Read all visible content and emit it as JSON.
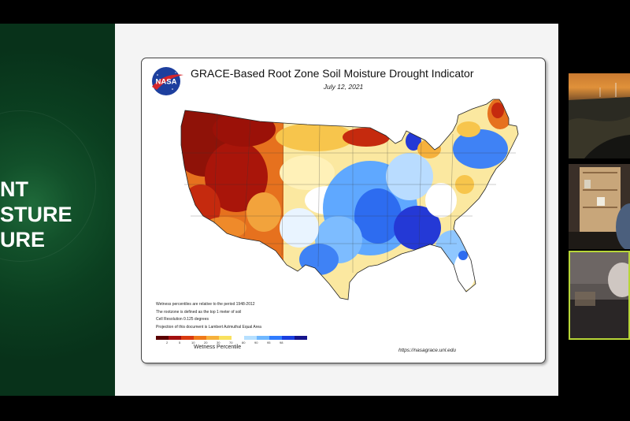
{
  "presentation": {
    "left_slide_lines": [
      "NT",
      "STURE",
      "URE"
    ]
  },
  "map": {
    "logo_text": "NASA",
    "title": "GRACE-Based Root Zone Soil  Moisture Drought Indicator",
    "date": "July 12, 2021",
    "notes": [
      "Wetness percentiles are relative to the period 1948-2012",
      "The rootzone is defined as the top 1 meter of soil",
      "Cell Resolution 0.125 degrees",
      "Projection of this document is Lambert Azimuthal Equal Area"
    ],
    "legend": {
      "title": "Wetness Percentile",
      "ticks": [
        "2",
        "5",
        "10",
        "20",
        "30",
        "70",
        "80",
        "90",
        "95",
        "98"
      ],
      "colors": [
        "#5a0000",
        "#a31010",
        "#d93a10",
        "#ef7a1a",
        "#f6b13c",
        "#f9e15e",
        "#ffffff",
        "#b6e0ff",
        "#6fb8ff",
        "#2f7cff",
        "#1a3fe0",
        "#16148c"
      ]
    },
    "source_url": "https://nasagrace.unl.edu"
  },
  "participants": {
    "tile_count": 3,
    "active_border_color": "#b8d637"
  }
}
